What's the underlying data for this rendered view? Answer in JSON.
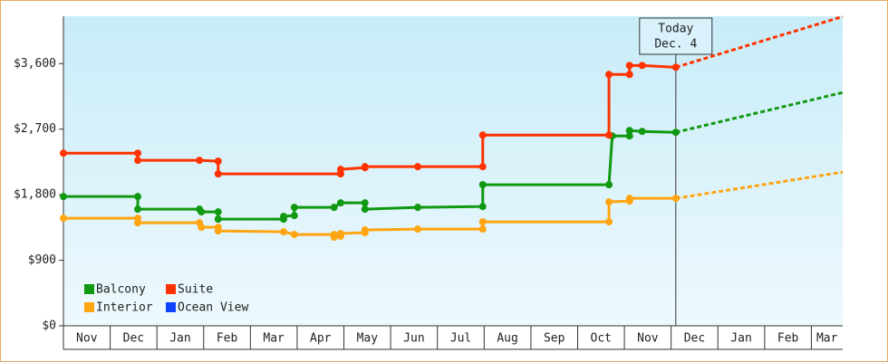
{
  "chart_data": {
    "type": "line",
    "xlim": [
      0,
      16.67
    ],
    "ylim": [
      0,
      4250
    ],
    "xticks": [
      {
        "value": 0,
        "label": "Nov"
      },
      {
        "value": 1,
        "label": "Dec"
      },
      {
        "value": 2,
        "label": "Jan"
      },
      {
        "value": 3,
        "label": "Feb"
      },
      {
        "value": 4,
        "label": "Mar"
      },
      {
        "value": 5,
        "label": "Apr"
      },
      {
        "value": 6,
        "label": "May"
      },
      {
        "value": 7,
        "label": "Jun"
      },
      {
        "value": 8,
        "label": "Jul"
      },
      {
        "value": 9,
        "label": "Aug"
      },
      {
        "value": 10,
        "label": "Sep"
      },
      {
        "value": 11,
        "label": "Oct"
      },
      {
        "value": 12,
        "label": "Nov"
      },
      {
        "value": 13,
        "label": "Dec"
      },
      {
        "value": 14,
        "label": "Jan"
      },
      {
        "value": 15,
        "label": "Feb"
      },
      {
        "value": 16,
        "label": "Mar"
      }
    ],
    "yticks": [
      {
        "value": 0,
        "label": "$0"
      },
      {
        "value": 900,
        "label": "$900"
      },
      {
        "value": 1800,
        "label": "$1,800"
      },
      {
        "value": 2700,
        "label": "$2,700"
      },
      {
        "value": 3600,
        "label": "$3,600"
      }
    ],
    "annotation": {
      "x": 13.1,
      "lines": [
        "Today",
        "Dec. 4"
      ]
    },
    "series": [
      {
        "name": "Balcony",
        "color": "#119911",
        "x": [
          0,
          1.59,
          1.59,
          2.91,
          2.95,
          3.31,
          3.31,
          4.71,
          4.71,
          4.94,
          4.94,
          5.79,
          5.93,
          6.45,
          6.45,
          7.58,
          8.97,
          8.97,
          11.67,
          11.74,
          12.11,
          12.11,
          12.38,
          13.1
        ],
        "values": [
          1775,
          1775,
          1601,
          1601,
          1564,
          1564,
          1465,
          1465,
          1502,
          1514,
          1626,
          1626,
          1688,
          1688,
          1601,
          1626,
          1638,
          1937,
          1937,
          2607,
          2607,
          2681,
          2669,
          2657
        ],
        "forecast": {
          "x": [
            13.1,
            16.67
          ],
          "values": [
            2657,
            3203
          ]
        }
      },
      {
        "name": "Suite",
        "color": "#ff3300",
        "x": [
          0,
          1.59,
          1.59,
          2.91,
          3.31,
          3.31,
          5.93,
          5.93,
          6.45,
          6.45,
          7.58,
          8.97,
          8.97,
          11.67,
          11.67,
          12.11,
          12.11,
          12.38,
          13.1
        ],
        "values": [
          2371,
          2371,
          2272,
          2272,
          2260,
          2086,
          2086,
          2148,
          2172,
          2185,
          2185,
          2185,
          2619,
          2619,
          3451,
          3451,
          3575,
          3575,
          3550
        ],
        "forecast": {
          "x": [
            13.1,
            16.67
          ],
          "values": [
            3550,
            4246
          ]
        }
      },
      {
        "name": "Interior",
        "color": "#ffa511",
        "x": [
          0,
          1.59,
          1.59,
          2.91,
          2.95,
          3.31,
          3.31,
          4.71,
          4.94,
          5.79,
          5.79,
          5.93,
          5.93,
          6.45,
          6.45,
          7.58,
          8.97,
          8.97,
          11.67,
          11.67,
          12.11,
          12.11,
          13.1
        ],
        "values": [
          1477,
          1477,
          1415,
          1415,
          1353,
          1353,
          1303,
          1291,
          1254,
          1254,
          1217,
          1229,
          1266,
          1279,
          1316,
          1328,
          1328,
          1428,
          1428,
          1701,
          1713,
          1750,
          1750
        ],
        "forecast": {
          "x": [
            13.1,
            16.67
          ],
          "values": [
            1750,
            2110
          ]
        }
      },
      {
        "name": "Ocean View",
        "color": "#1144ff",
        "x": [],
        "values": []
      }
    ]
  }
}
